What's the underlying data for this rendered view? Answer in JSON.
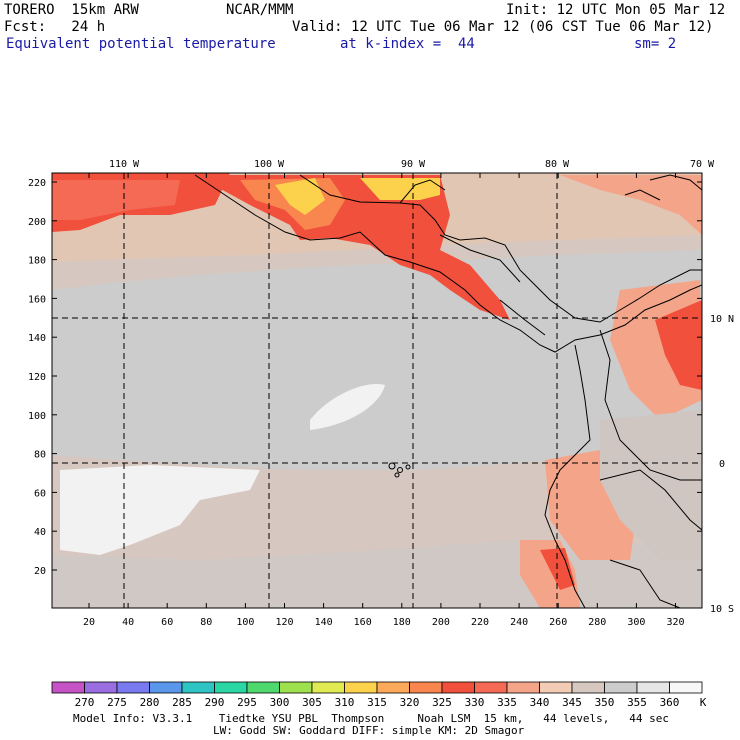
{
  "header": {
    "model": "TORERO  15km ARW",
    "org": "NCAR/MMM",
    "init": "Init: 12 UTC Mon 05 Mar 12",
    "fcst": "Fcst:   24 h",
    "valid": "Valid: 12 UTC Tue 06 Mar 12 (06 CST Tue 06 Mar 12)",
    "field": "Equivalent potential temperature",
    "level": "at k-index =  44",
    "smooth": "sm= 2"
  },
  "map": {
    "lon_labels": [
      "110 W",
      "100 W",
      "90 W",
      "80 W",
      "70 W"
    ],
    "lat_labels": [
      "10 N",
      "0",
      "10 S"
    ],
    "y_ticks": [
      "220",
      "200",
      "180",
      "160",
      "140",
      "120",
      "100",
      "80",
      "60",
      "40",
      "20"
    ],
    "x_ticks": [
      "20",
      "40",
      "60",
      "80",
      "100",
      "120",
      "140",
      "160",
      "180",
      "200",
      "220",
      "240",
      "260",
      "280",
      "300",
      "320"
    ]
  },
  "colorbar": {
    "labels": [
      "270",
      "275",
      "280",
      "285",
      "290",
      "295",
      "300",
      "305",
      "310",
      "315",
      "320",
      "325",
      "330",
      "335",
      "340",
      "345",
      "350",
      "355",
      "360"
    ],
    "unit": "K",
    "colors": [
      "#c653c6",
      "#9a6ee0",
      "#7a7af0",
      "#5a96ea",
      "#2ec4c4",
      "#2ad6a4",
      "#4fd86e",
      "#9ee04e",
      "#e0ea52",
      "#fcd24c",
      "#fcaa5a",
      "#f8864e",
      "#f0503c",
      "#f46a54",
      "#f4a488",
      "#f2ccb4",
      "#d6c8c0",
      "#cccccc",
      "#e6e6e6",
      "#f8f8f8"
    ]
  },
  "footer": {
    "line1": "Model Info: V3.3.1    Tiedtke YSU PBL  Thompson     Noah LSM  15 km,   44 levels,   44 sec",
    "line2": "LW: Godd SW: Goddard DIFF: simple KM: 2D Smagor"
  }
}
